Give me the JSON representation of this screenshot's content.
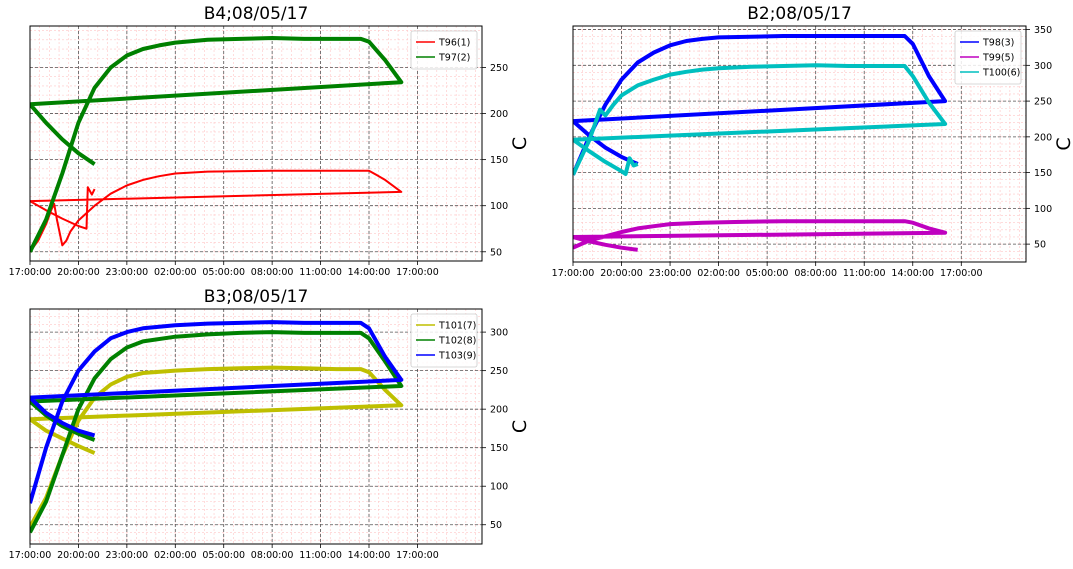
{
  "chart_data": [
    {
      "type": "line",
      "title": "B4;08/05/17",
      "xlabel": "",
      "ylabel": "C",
      "x_ticks": [
        "17:00:00",
        "20:00:00",
        "23:00:00",
        "02:00:00",
        "05:00:00",
        "08:00:00",
        "11:00:00",
        "14:00:00",
        "17:00:00"
      ],
      "y_ticks": [
        50,
        100,
        150,
        200,
        250
      ],
      "xlim": [
        "17:00",
        "21:00+1d"
      ],
      "ylim": [
        40,
        295
      ],
      "grid": true,
      "legend": "top-right",
      "series": [
        {
          "name": "T96(1)",
          "color": "#ff0000",
          "points": [
            [
              "17:00",
              50
            ],
            [
              "17:30",
              62
            ],
            [
              "18:00",
              80
            ],
            [
              "18:20",
              96
            ],
            [
              "18:30",
              102
            ],
            [
              "18:40",
              85
            ],
            [
              "19:00",
              57
            ],
            [
              "19:15",
              62
            ],
            [
              "19:30",
              72
            ],
            [
              "20:00",
              84
            ],
            [
              "20:30",
              92
            ],
            [
              "21:00",
              100
            ],
            [
              "22:00",
              113
            ],
            [
              "23:00",
              122
            ],
            [
              "00:00",
              128
            ],
            [
              "01:00",
              132
            ],
            [
              "02:00",
              135
            ],
            [
              "04:00",
              137
            ],
            [
              "08:00",
              138
            ],
            [
              "11:00",
              138
            ],
            [
              "13:00",
              138
            ],
            [
              "14:00",
              138
            ],
            [
              "14:30",
              133
            ],
            [
              "15:00",
              128
            ],
            [
              "16:00",
              115
            ],
            [
              "17:00",
              105
            ],
            [
              "18:00",
              95
            ],
            [
              "19:00",
              86
            ],
            [
              "20:00",
              78
            ],
            [
              "20:30",
              75
            ],
            [
              "20:35",
              120
            ],
            [
              "20:50",
              112
            ],
            [
              "21:00",
              118
            ]
          ]
        },
        {
          "name": "T97(2)",
          "color": "#008000",
          "points": [
            [
              "17:00",
              50
            ],
            [
              "18:00",
              85
            ],
            [
              "19:00",
              135
            ],
            [
              "20:00",
              190
            ],
            [
              "21:00",
              228
            ],
            [
              "22:00",
              250
            ],
            [
              "23:00",
              263
            ],
            [
              "00:00",
              270
            ],
            [
              "01:00",
              274
            ],
            [
              "02:00",
              277
            ],
            [
              "04:00",
              280
            ],
            [
              "06:00",
              281
            ],
            [
              "08:00",
              282
            ],
            [
              "10:00",
              281
            ],
            [
              "12:00",
              281
            ],
            [
              "13:30",
              281
            ],
            [
              "14:00",
              278
            ],
            [
              "15:00",
              258
            ],
            [
              "16:00",
              234
            ],
            [
              "17:00",
              210
            ],
            [
              "18:00",
              190
            ],
            [
              "19:00",
              172
            ],
            [
              "20:00",
              157
            ],
            [
              "21:00",
              145
            ]
          ]
        }
      ]
    },
    {
      "type": "line",
      "title": "B2;08/05/17",
      "xlabel": "",
      "ylabel": "C",
      "x_ticks": [
        "17:00:00",
        "20:00:00",
        "23:00:00",
        "02:00:00",
        "05:00:00",
        "08:00:00",
        "11:00:00",
        "14:00:00",
        "17:00:00"
      ],
      "y_ticks": [
        50,
        100,
        150,
        200,
        250,
        300,
        350
      ],
      "xlim": [
        "17:00",
        "21:00+1d"
      ],
      "ylim": [
        25,
        355
      ],
      "grid": true,
      "legend": "top-right",
      "series": [
        {
          "name": "T98(3)",
          "color": "#0000ff",
          "points": [
            [
              "17:00",
              147
            ],
            [
              "18:00",
              200
            ],
            [
              "19:00",
              245
            ],
            [
              "20:00",
              280
            ],
            [
              "21:00",
              304
            ],
            [
              "22:00",
              318
            ],
            [
              "23:00",
              328
            ],
            [
              "00:00",
              334
            ],
            [
              "01:00",
              337
            ],
            [
              "02:00",
              339
            ],
            [
              "04:00",
              340
            ],
            [
              "06:00",
              341
            ],
            [
              "08:00",
              341
            ],
            [
              "10:00",
              341
            ],
            [
              "12:00",
              341
            ],
            [
              "13:30",
              341
            ],
            [
              "14:00",
              330
            ],
            [
              "15:00",
              285
            ],
            [
              "16:00",
              250
            ],
            [
              "17:00",
              222
            ],
            [
              "18:00",
              202
            ],
            [
              "19:00",
              185
            ],
            [
              "20:00",
              172
            ],
            [
              "21:00",
              162
            ]
          ]
        },
        {
          "name": "T99(5)",
          "color": "#bf00bf",
          "points": [
            [
              "17:00",
              45
            ],
            [
              "18:00",
              55
            ],
            [
              "19:00",
              61
            ],
            [
              "20:00",
              67
            ],
            [
              "21:00",
              72
            ],
            [
              "22:00",
              75
            ],
            [
              "23:00",
              78
            ],
            [
              "01:00",
              80
            ],
            [
              "03:00",
              81
            ],
            [
              "06:00",
              82
            ],
            [
              "09:00",
              82
            ],
            [
              "12:00",
              82
            ],
            [
              "13:30",
              82
            ],
            [
              "14:00",
              80
            ],
            [
              "15:00",
              72
            ],
            [
              "16:00",
              66
            ],
            [
              "17:00",
              60
            ],
            [
              "18:00",
              54
            ],
            [
              "19:00",
              49
            ],
            [
              "20:00",
              45
            ],
            [
              "21:00",
              42
            ]
          ]
        },
        {
          "name": "T100(6)",
          "color": "#00bfbf",
          "points": [
            [
              "17:00",
              147
            ],
            [
              "18:00",
              195
            ],
            [
              "18:40",
              238
            ],
            [
              "19:00",
              230
            ],
            [
              "19:30",
              245
            ],
            [
              "20:00",
              258
            ],
            [
              "21:00",
              272
            ],
            [
              "22:00",
              280
            ],
            [
              "23:00",
              287
            ],
            [
              "00:00",
              291
            ],
            [
              "01:00",
              294
            ],
            [
              "02:00",
              296
            ],
            [
              "04:00",
              298
            ],
            [
              "06:00",
              299
            ],
            [
              "08:00",
              300
            ],
            [
              "10:00",
              299
            ],
            [
              "12:00",
              299
            ],
            [
              "13:30",
              299
            ],
            [
              "14:00",
              285
            ],
            [
              "15:00",
              248
            ],
            [
              "16:00",
              218
            ],
            [
              "17:00",
              196
            ],
            [
              "18:00",
              180
            ],
            [
              "19:00",
              165
            ],
            [
              "20:00",
              152
            ],
            [
              "20:15",
              148
            ],
            [
              "20:30",
              170
            ],
            [
              "20:45",
              160
            ],
            [
              "21:00",
              162
            ]
          ]
        }
      ]
    },
    {
      "type": "line",
      "title": "B3;08/05/17",
      "xlabel": "",
      "ylabel": "C",
      "x_ticks": [
        "17:00:00",
        "20:00:00",
        "23:00:00",
        "02:00:00",
        "05:00:00",
        "08:00:00",
        "11:00:00",
        "14:00:00",
        "17:00:00"
      ],
      "y_ticks": [
        50,
        100,
        150,
        200,
        250,
        300
      ],
      "xlim": [
        "17:00",
        "21:00+1d"
      ],
      "ylim": [
        25,
        330
      ],
      "grid": true,
      "legend": "top-right",
      "series": [
        {
          "name": "T101(7)",
          "color": "#bfbf00",
          "points": [
            [
              "17:00",
              47
            ],
            [
              "18:00",
              85
            ],
            [
              "19:00",
              140
            ],
            [
              "20:00",
              185
            ],
            [
              "21:00",
              215
            ],
            [
              "22:00",
              232
            ],
            [
              "23:00",
              242
            ],
            [
              "00:00",
              247
            ],
            [
              "02:00",
              250
            ],
            [
              "04:00",
              252
            ],
            [
              "06:00",
              253
            ],
            [
              "08:00",
              254
            ],
            [
              "10:00",
              253
            ],
            [
              "12:00",
              252
            ],
            [
              "13:30",
              252
            ],
            [
              "14:00",
              248
            ],
            [
              "15:00",
              225
            ],
            [
              "16:00",
              205
            ],
            [
              "17:00",
              187
            ],
            [
              "18:00",
              172
            ],
            [
              "19:00",
              162
            ],
            [
              "20:00",
              152
            ],
            [
              "21:00",
              143
            ]
          ]
        },
        {
          "name": "T102(8)",
          "color": "#008000",
          "points": [
            [
              "17:00",
              40
            ],
            [
              "18:00",
              80
            ],
            [
              "19:00",
              140
            ],
            [
              "20:00",
              200
            ],
            [
              "21:00",
              240
            ],
            [
              "22:00",
              265
            ],
            [
              "23:00",
              280
            ],
            [
              "00:00",
              288
            ],
            [
              "02:00",
              294
            ],
            [
              "04:00",
              297
            ],
            [
              "06:00",
              299
            ],
            [
              "08:00",
              300
            ],
            [
              "10:00",
              299
            ],
            [
              "12:00",
              299
            ],
            [
              "13:30",
              299
            ],
            [
              "14:00",
              292
            ],
            [
              "15:00",
              262
            ],
            [
              "16:00",
              230
            ],
            [
              "17:00",
              210
            ],
            [
              "18:00",
              192
            ],
            [
              "19:00",
              178
            ],
            [
              "20:00",
              168
            ],
            [
              "21:00",
              160
            ]
          ]
        },
        {
          "name": "T103(9)",
          "color": "#0000ff",
          "points": [
            [
              "17:00",
              78
            ],
            [
              "18:00",
              150
            ],
            [
              "19:00",
              210
            ],
            [
              "20:00",
              250
            ],
            [
              "21:00",
              275
            ],
            [
              "22:00",
              292
            ],
            [
              "23:00",
              300
            ],
            [
              "00:00",
              305
            ],
            [
              "02:00",
              309
            ],
            [
              "04:00",
              311
            ],
            [
              "06:00",
              312
            ],
            [
              "08:00",
              313
            ],
            [
              "10:00",
              312
            ],
            [
              "12:00",
              312
            ],
            [
              "13:30",
              312
            ],
            [
              "14:00",
              305
            ],
            [
              "15:00",
              268
            ],
            [
              "16:00",
              238
            ],
            [
              "17:00",
              215
            ],
            [
              "18:00",
              195
            ],
            [
              "19:00",
              182
            ],
            [
              "20:00",
              172
            ],
            [
              "21:00",
              166
            ]
          ]
        }
      ]
    }
  ]
}
